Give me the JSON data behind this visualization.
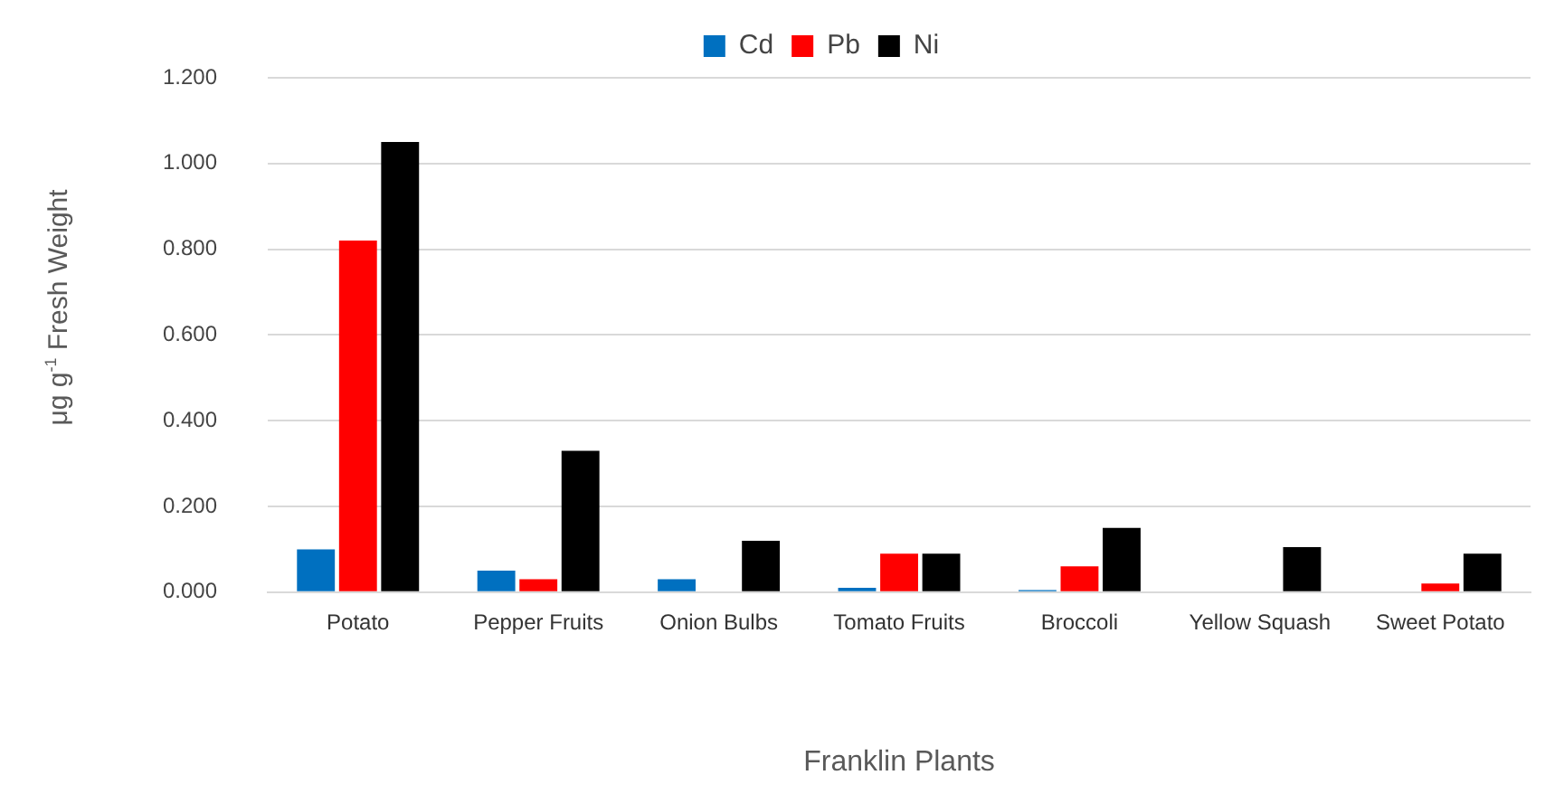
{
  "chart_data": {
    "type": "bar",
    "xlabel": "Franklin Plants",
    "ylabel": "μg g$^{-1}$ Fresh Weight",
    "categories": [
      "Potato",
      "Pepper Fruits",
      "Onion Bulbs",
      "Tomato Fruits",
      "Broccoli",
      "Yellow Squash",
      "Sweet Potato"
    ],
    "series": [
      {
        "name": "Cd",
        "color": "#0070c0",
        "values": [
          0.1,
          0.05,
          0.03,
          0.01,
          0.005,
          null,
          null
        ]
      },
      {
        "name": "Pb",
        "color": "#ff0000",
        "values": [
          0.82,
          0.03,
          0,
          0.09,
          0.06,
          null,
          0.02
        ]
      },
      {
        "name": "Ni",
        "color": "#000000",
        "values": [
          1.05,
          0.33,
          0.12,
          0.09,
          0.15,
          0.105,
          0.09
        ]
      }
    ],
    "ylim": [
      0,
      1.2
    ],
    "yticks": [
      {
        "value": 0,
        "label": "0.000"
      },
      {
        "value": 0.2,
        "label": "0.200"
      },
      {
        "value": 0.4,
        "label": "0.400"
      },
      {
        "value": 0.6,
        "label": "0.600"
      },
      {
        "value": 0.8,
        "label": "0.800"
      },
      {
        "value": 1,
        "label": "1.000"
      },
      {
        "value": 1.2,
        "label": "1.200"
      }
    ],
    "grid": "y",
    "legend": "top"
  }
}
